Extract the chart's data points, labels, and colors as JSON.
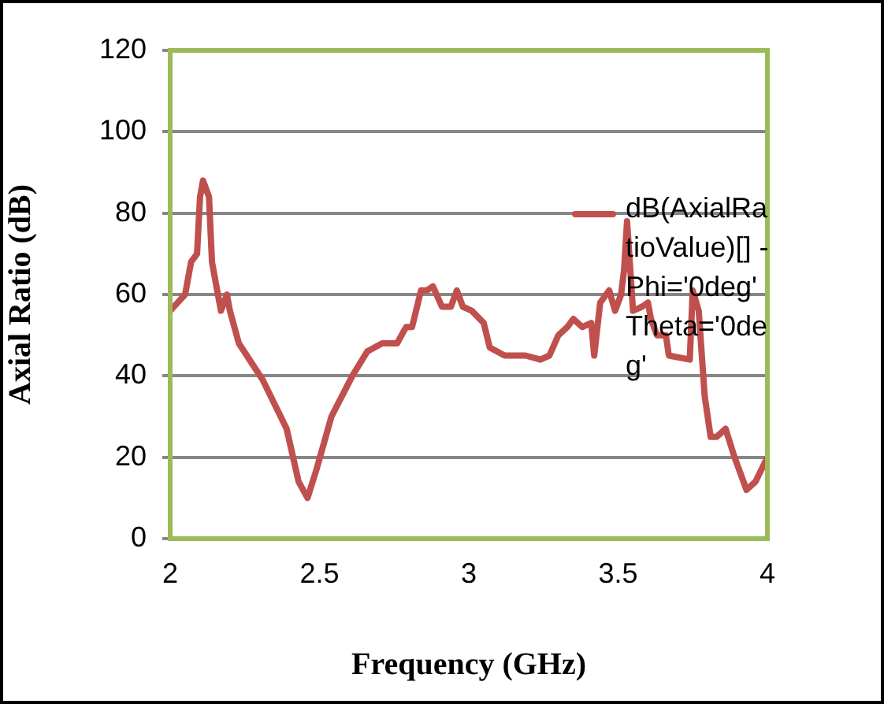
{
  "chart_data": {
    "type": "line",
    "xlabel": "Frequency (GHz)",
    "ylabel": "Axial Ratio (dB)",
    "xlim": [
      2,
      4
    ],
    "xticks": [
      2,
      2.5,
      3,
      3.5,
      4
    ],
    "ylim": [
      0,
      120
    ],
    "yticks": [
      0,
      20,
      40,
      60,
      80,
      100,
      120
    ],
    "grid": "y",
    "legend": "right",
    "marker": "none",
    "line_style": "solid",
    "series": [
      {
        "name": "dB(AxialRatioValue)[] - Phi='0deg' Theta='0deg'",
        "color": "#c0504d",
        "x": [
          2.0,
          2.05,
          2.07,
          2.09,
          2.1,
          2.11,
          2.13,
          2.14,
          2.17,
          2.19,
          2.2,
          2.23,
          2.31,
          2.39,
          2.43,
          2.46,
          2.49,
          2.54,
          2.61,
          2.66,
          2.71,
          2.76,
          2.79,
          2.81,
          2.84,
          2.86,
          2.88,
          2.91,
          2.94,
          2.96,
          2.98,
          3.01,
          3.05,
          3.07,
          3.12,
          3.14,
          3.19,
          3.24,
          3.27,
          3.3,
          3.33,
          3.35,
          3.38,
          3.41,
          3.42,
          3.44,
          3.47,
          3.49,
          3.51,
          3.52,
          3.53,
          3.54,
          3.55,
          3.58,
          3.6,
          3.61,
          3.63,
          3.66,
          3.67,
          3.74,
          3.75,
          3.77,
          3.79,
          3.81,
          3.83,
          3.86,
          3.89,
          3.93,
          3.96,
          4.0
        ],
        "values": [
          56,
          60,
          68,
          70,
          84,
          88,
          84,
          68,
          56,
          60,
          56,
          48,
          39,
          27,
          14,
          10,
          17,
          30,
          40,
          46,
          48,
          48,
          52,
          52,
          61,
          61,
          62,
          57,
          57,
          61,
          57,
          56,
          53,
          47,
          45,
          45,
          45,
          44,
          45,
          50,
          52,
          54,
          52,
          53,
          45,
          58,
          61,
          56,
          60,
          66,
          78,
          67,
          56,
          57,
          58,
          54,
          50,
          50,
          45,
          44,
          61,
          56,
          35,
          25,
          25,
          27,
          20,
          12,
          14,
          20
        ]
      }
    ]
  }
}
